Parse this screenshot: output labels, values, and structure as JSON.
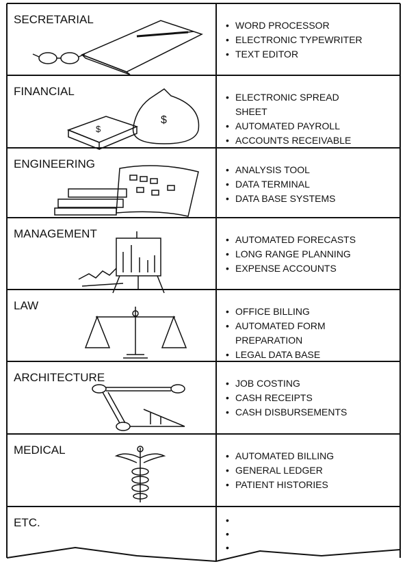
{
  "rows": [
    {
      "category": "SECRETARIAL",
      "items": [
        "WORD PROCESSOR",
        "ELECTRONIC TYPEWRITER",
        "TEXT EDITOR"
      ]
    },
    {
      "category": "FINANCIAL",
      "items": [
        "ELECTRONIC SPREAD SHEET",
        "AUTOMATED PAYROLL",
        "ACCOUNTS RECEIVABLE"
      ]
    },
    {
      "category": "ENGINEERING",
      "items": [
        "ANALYSIS TOOL",
        "DATA TERMINAL",
        "DATA BASE SYSTEMS"
      ]
    },
    {
      "category": "MANAGEMENT",
      "items": [
        "AUTOMATED FORECASTS",
        "LONG RANGE PLANNING",
        "EXPENSE ACCOUNTS"
      ]
    },
    {
      "category": "LAW",
      "items": [
        "OFFICE BILLING",
        "AUTOMATED FORM PREPARATION",
        "LEGAL DATA BASE"
      ]
    },
    {
      "category": "ARCHITECTURE",
      "items": [
        "JOB COSTING",
        "CASH RECEIPTS",
        "CASH DISBURSEMENTS"
      ]
    },
    {
      "category": "MEDICAL",
      "items": [
        "AUTOMATED BILLING",
        "GENERAL LEDGER",
        "PATIENT HISTORIES"
      ]
    },
    {
      "category": "ETC.",
      "items": []
    }
  ]
}
